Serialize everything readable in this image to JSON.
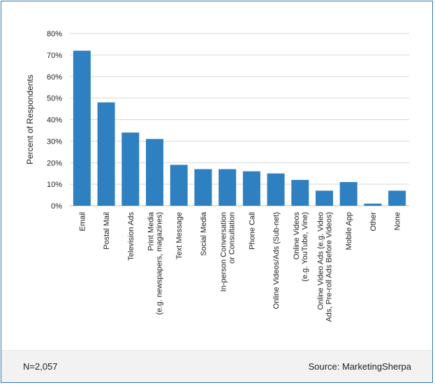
{
  "footer": {
    "sample": "N=2,057",
    "source": "Source: MarketingSherpa"
  },
  "colors": {
    "bar": "#2f80c0",
    "frame": "#2f75b5",
    "grid": "#d9d9d9",
    "footer_bg": "#f2f2f2"
  },
  "chart_data": {
    "type": "bar",
    "title": "",
    "xlabel": "",
    "ylabel": "Percent of Respondents",
    "ylim": [
      0,
      80
    ],
    "y_ticks": [
      0,
      10,
      20,
      30,
      40,
      50,
      60,
      70,
      80
    ],
    "y_tick_labels": [
      "0%",
      "10%",
      "20%",
      "30%",
      "40%",
      "50%",
      "60%",
      "70%",
      "80%"
    ],
    "grid": true,
    "categories": [
      [
        "Email"
      ],
      [
        "Postal Mail"
      ],
      [
        "Television Ads"
      ],
      [
        "Print Media",
        "(e.g. newspapers, magazines)"
      ],
      [
        "Text Message"
      ],
      [
        "Social Media"
      ],
      [
        "In-person Conversation",
        "or Consultation"
      ],
      [
        "Phone Call"
      ],
      [
        "Online Videos/Ads (Sub-net)"
      ],
      [
        "Online Videos",
        "(e.g. YouTube, Vine)"
      ],
      [
        "Online Video Ads (e.g. Video",
        "Ads, Pre-roll Ads Before Videos)"
      ],
      [
        "Mobile App"
      ],
      [
        "Other"
      ],
      [
        "None"
      ]
    ],
    "values": [
      72,
      48,
      34,
      31,
      19,
      17,
      17,
      16,
      15,
      12,
      7,
      11,
      1,
      7
    ]
  }
}
